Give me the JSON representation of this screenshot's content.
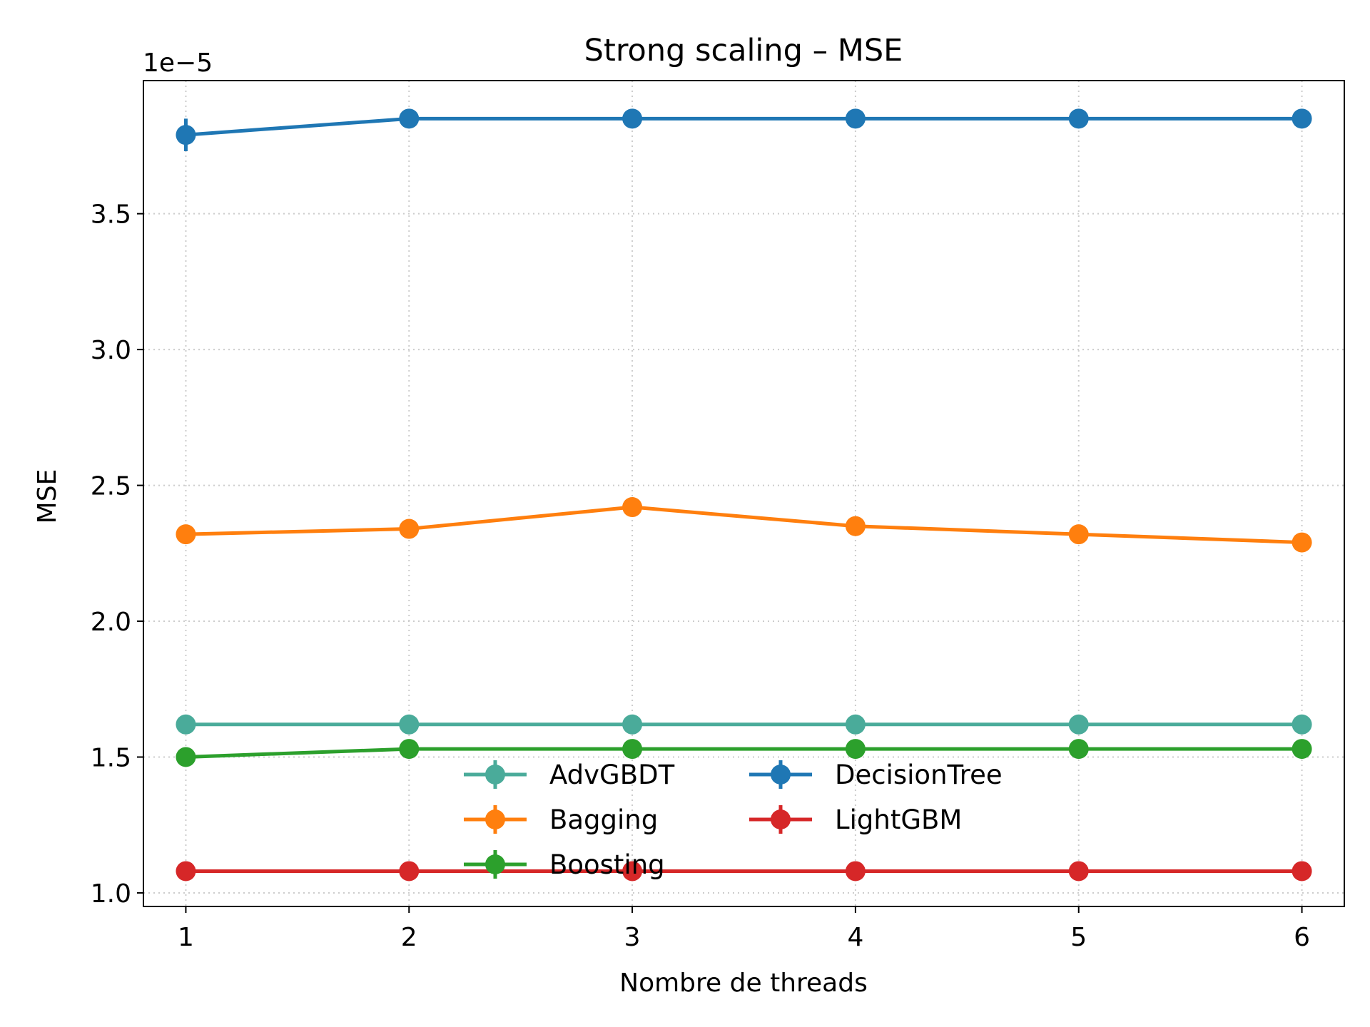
{
  "chart_data": {
    "type": "line",
    "title": "Strong scaling – MSE",
    "xlabel": "Nombre de threads",
    "ylabel": "MSE",
    "y_offset_label": "1e−5",
    "x": [
      1,
      2,
      3,
      4,
      5,
      6
    ],
    "x_ticks": [
      "1",
      "2",
      "3",
      "4",
      "5",
      "6"
    ],
    "xlim": [
      0.81,
      6.19
    ],
    "y_ticks": [
      1.0,
      1.5,
      2.0,
      2.5,
      3.0,
      3.5
    ],
    "y_tick_labels": [
      "1.0",
      "1.5",
      "2.0",
      "2.5",
      "3.0",
      "3.5"
    ],
    "ylim": [
      0.95,
      3.99
    ],
    "y_scale_note": "values shown ×1e−5",
    "grid": true,
    "legend_position": "lower center",
    "series": [
      {
        "name": "AdvGBDT",
        "color": "#4aab9a",
        "values": [
          1.62,
          1.62,
          1.62,
          1.62,
          1.62,
          1.62
        ],
        "errors": [
          0,
          0,
          0,
          0,
          0,
          0
        ]
      },
      {
        "name": "Bagging",
        "color": "#ff7f0e",
        "values": [
          2.32,
          2.34,
          2.42,
          2.35,
          2.32,
          2.29
        ],
        "errors": [
          0.01,
          0.03,
          0.02,
          0.01,
          0.01,
          0.01
        ]
      },
      {
        "name": "Boosting",
        "color": "#2ca02c",
        "values": [
          1.5,
          1.53,
          1.53,
          1.53,
          1.53,
          1.53
        ],
        "errors": [
          0.01,
          0,
          0,
          0,
          0,
          0
        ]
      },
      {
        "name": "DecisionTree",
        "color": "#1f77b4",
        "values": [
          3.79,
          3.85,
          3.85,
          3.85,
          3.85,
          3.85
        ],
        "errors": [
          0.06,
          0,
          0,
          0,
          0,
          0
        ]
      },
      {
        "name": "LightGBM",
        "color": "#d62728",
        "values": [
          1.08,
          1.08,
          1.08,
          1.08,
          1.08,
          1.08
        ],
        "errors": [
          0,
          0,
          0,
          0,
          0,
          0
        ]
      }
    ],
    "legend_columns": [
      [
        "AdvGBDT",
        "Bagging",
        "Boosting"
      ],
      [
        "DecisionTree",
        "LightGBM"
      ]
    ]
  }
}
